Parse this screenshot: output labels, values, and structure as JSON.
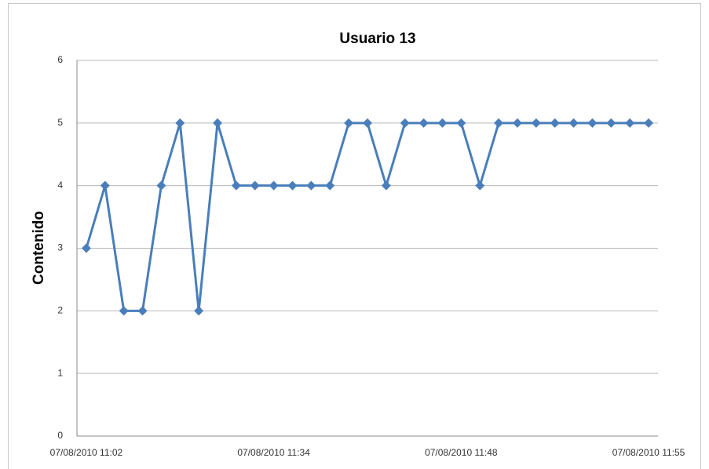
{
  "chart_data": {
    "type": "line",
    "title": "Usuario  13",
    "y_label": "Contenido",
    "categories": [
      "07/08/2010 11:02",
      null,
      null,
      null,
      null,
      null,
      null,
      null,
      null,
      null,
      "07/08/2010 11:34",
      null,
      null,
      null,
      null,
      null,
      null,
      null,
      null,
      null,
      "07/08/2010 11:48",
      null,
      null,
      null,
      null,
      null,
      null,
      null,
      null,
      null,
      "07/08/2010 11:55"
    ],
    "series": [
      {
        "name": "Contenido",
        "color": "#4a7ebb",
        "values": [
          3,
          4,
          2,
          2,
          4,
          5,
          2,
          5,
          4,
          4,
          4,
          4,
          4,
          4,
          5,
          5,
          4,
          5,
          5,
          5,
          5,
          4,
          5,
          5,
          5,
          5,
          5,
          5,
          5,
          5,
          5
        ]
      }
    ],
    "ylim": [
      0,
      6
    ],
    "yticks": [
      0,
      1,
      2,
      3,
      4,
      5,
      6
    ],
    "grid": true,
    "marker": "diamond"
  }
}
